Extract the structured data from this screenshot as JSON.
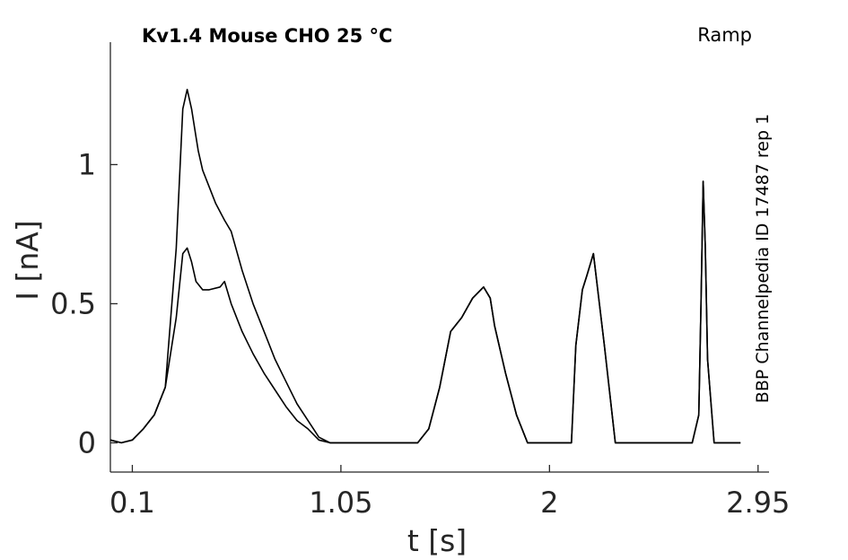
{
  "chart_data": {
    "type": "line",
    "title": "Kv1.4  Mouse  CHO  25 °C",
    "protocol_label": "Ramp",
    "source_label": "BBP Channelpedia ID 17487 rep 1",
    "xlabel": "t [s]",
    "ylabel": "I [nA]",
    "xlim": [
      0.0,
      3.0
    ],
    "ylim": [
      -0.105,
      1.44
    ],
    "x_ticks": [
      0.1,
      1.05,
      2,
      2.95
    ],
    "x_tick_labels": [
      "0.1",
      "1.05",
      "2",
      "2.95"
    ],
    "y_ticks": [
      0,
      0.5,
      1
    ],
    "y_tick_labels": [
      "0",
      "0.5",
      "1"
    ],
    "grid": false,
    "series": [
      {
        "x": [
          0.0,
          0.05,
          0.1,
          0.15,
          0.2,
          0.25,
          0.3,
          0.33,
          0.35,
          0.37,
          0.39,
          0.4,
          0.42,
          0.45,
          0.48,
          0.52,
          0.55,
          0.6,
          0.65,
          0.7,
          0.75,
          0.8,
          0.85,
          0.9,
          0.95,
          1.0,
          1.2,
          1.3,
          1.4,
          1.45,
          1.5,
          1.55,
          1.6,
          1.65,
          1.7,
          1.73,
          1.75,
          1.8,
          1.85,
          1.9,
          2.0,
          2.05,
          2.1,
          2.12,
          2.15,
          2.17,
          2.2,
          2.25,
          2.3,
          2.6,
          2.65,
          2.68,
          2.69,
          2.7,
          2.71,
          2.72,
          2.75,
          2.8,
          2.87
        ],
        "y": [
          0.01,
          0.0,
          0.01,
          0.05,
          0.1,
          0.2,
          0.7,
          1.2,
          1.27,
          1.2,
          1.1,
          1.05,
          0.98,
          0.92,
          0.86,
          0.8,
          0.76,
          0.62,
          0.5,
          0.4,
          0.3,
          0.22,
          0.14,
          0.08,
          0.02,
          0.0,
          0.0,
          0.0,
          0.0,
          0.05,
          0.2,
          0.4,
          0.45,
          0.52,
          0.56,
          0.52,
          0.42,
          0.25,
          0.1,
          0.0,
          0.0,
          0.0,
          0.0,
          0.35,
          0.55,
          0.6,
          0.68,
          0.35,
          0.0,
          0.0,
          0.0,
          0.1,
          0.5,
          0.94,
          0.7,
          0.3,
          0.0,
          0.0,
          0.0
        ]
      },
      {
        "x": [
          0.0,
          0.05,
          0.1,
          0.15,
          0.2,
          0.25,
          0.3,
          0.33,
          0.35,
          0.37,
          0.39,
          0.42,
          0.45,
          0.5,
          0.52,
          0.55,
          0.6,
          0.65,
          0.7,
          0.75,
          0.8,
          0.85,
          0.9,
          0.95,
          1.0,
          1.2,
          1.3,
          1.4,
          1.45,
          1.5,
          1.55,
          1.6,
          1.65,
          1.7,
          1.73,
          1.75,
          1.8,
          1.85,
          1.9,
          2.0,
          2.05,
          2.1,
          2.12,
          2.15,
          2.17,
          2.2,
          2.25,
          2.3,
          2.6,
          2.65,
          2.68,
          2.69,
          2.7,
          2.71,
          2.72,
          2.75,
          2.8,
          2.87
        ],
        "y": [
          0.01,
          0.0,
          0.01,
          0.05,
          0.1,
          0.2,
          0.45,
          0.68,
          0.7,
          0.65,
          0.58,
          0.55,
          0.55,
          0.56,
          0.58,
          0.5,
          0.4,
          0.32,
          0.25,
          0.19,
          0.13,
          0.08,
          0.05,
          0.01,
          0.0,
          0.0,
          0.0,
          0.0,
          0.05,
          0.2,
          0.4,
          0.45,
          0.52,
          0.56,
          0.52,
          0.42,
          0.25,
          0.1,
          0.0,
          0.0,
          0.0,
          0.0,
          0.35,
          0.55,
          0.6,
          0.68,
          0.35,
          0.0,
          0.0,
          0.0,
          0.1,
          0.5,
          0.94,
          0.7,
          0.3,
          0.0,
          0.0,
          0.0
        ]
      }
    ]
  }
}
